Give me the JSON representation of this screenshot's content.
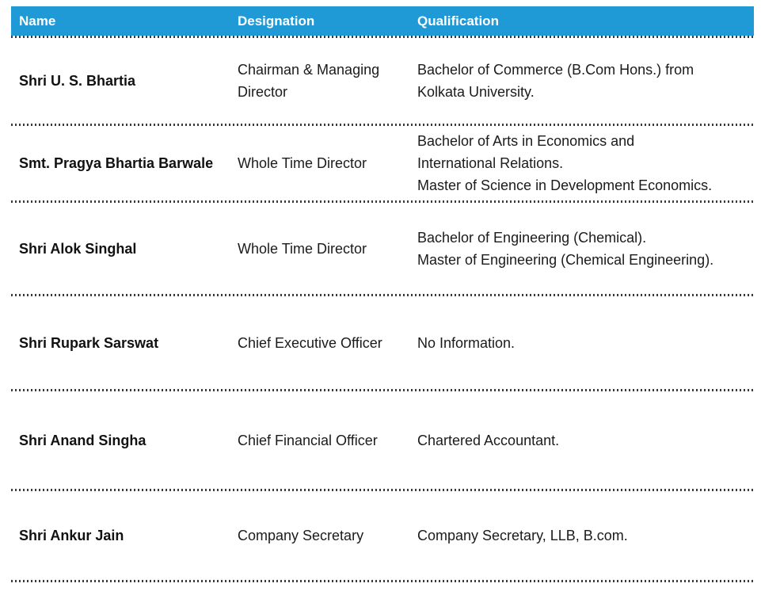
{
  "table": {
    "title": "Board and Key Managerial Personnel table",
    "colors": {
      "header_bg": "#1f9ad6",
      "header_text": "#ffffff",
      "body_text": "#1b1b1b",
      "separator_dots": "#3b3b3b"
    },
    "columns": {
      "name": "Name",
      "designation": "Designation",
      "qualification": "Qualification"
    },
    "rows": [
      {
        "name": "Shri U. S. Bhartia",
        "designation": "Chairman & Managing\nDirector",
        "qualification": "Bachelor of Commerce (B.Com Hons.) from\nKolkata University."
      },
      {
        "name": "Smt. Pragya Bhartia Barwale",
        "designation": "Whole Time Director",
        "qualification": "Bachelor of Arts in Economics and\nInternational Relations.\nMaster of Science in Development Economics."
      },
      {
        "name": "Shri Alok Singhal",
        "designation": "Whole Time Director",
        "qualification": "Bachelor of Engineering (Chemical).\nMaster of Engineering (Chemical Engineering)."
      },
      {
        "name": "Shri Rupark Sarswat",
        "designation": "Chief Executive Officer",
        "qualification": "No Information."
      },
      {
        "name": "Shri Anand Singha",
        "designation": "Chief Financial Officer",
        "qualification": "Chartered Accountant."
      },
      {
        "name": "Shri Ankur Jain",
        "designation": "Company Secretary",
        "qualification": "Company Secretary, LLB, B.com."
      }
    ]
  }
}
